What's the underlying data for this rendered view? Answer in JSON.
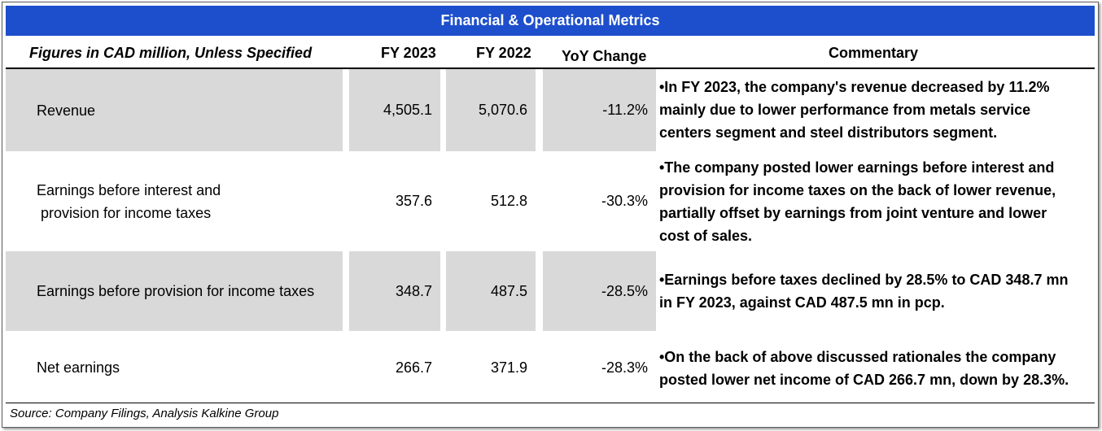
{
  "title": "Financial & Operational Metrics",
  "header": {
    "label": "Figures in CAD million, Unless Specified",
    "fy2023": "FY 2023",
    "fy2022": "FY 2022",
    "yoy": "YoY Change",
    "commentary": "Commentary"
  },
  "rows": [
    {
      "label": "Revenue",
      "fy2023": "4,505.1",
      "fy2022": "5,070.6",
      "yoy": "-11.2%",
      "commentary": [
        "•In FY 2023, the company's revenue decreased by 11.2%",
        "mainly due to lower performance from metals service",
        "centers segment and steel distributors segment."
      ]
    },
    {
      "label": [
        "Earnings before interest and",
        " provision for income taxes"
      ],
      "fy2023": "357.6",
      "fy2022": "512.8",
      "yoy": "-30.3%",
      "commentary": [
        "•The company posted lower earnings before interest and",
        "provision for income taxes on the back of lower revenue,",
        "partially offset by earnings from joint venture and lower",
        "cost of sales."
      ]
    },
    {
      "label": "Earnings before provision for income taxes",
      "fy2023": "348.7",
      "fy2022": "487.5",
      "yoy": "-28.5%",
      "commentary": [
        "•Earnings before taxes declined by 28.5% to CAD 348.7 mn",
        "in FY 2023, against CAD 487.5 mn in pcp."
      ]
    },
    {
      "label": "Net earnings",
      "fy2023": "266.7",
      "fy2022": "371.9",
      "yoy": "-28.3%",
      "commentary": [
        "•On the back of above discussed rationales the company",
        "posted lower net income of CAD 266.7 mn, down by 28.3%."
      ]
    }
  ],
  "source": "Source: Company Filings, Analysis Kalkine Group",
  "colors": {
    "title_bg": "#1d4fcc",
    "shade": "#d9d9d9"
  }
}
